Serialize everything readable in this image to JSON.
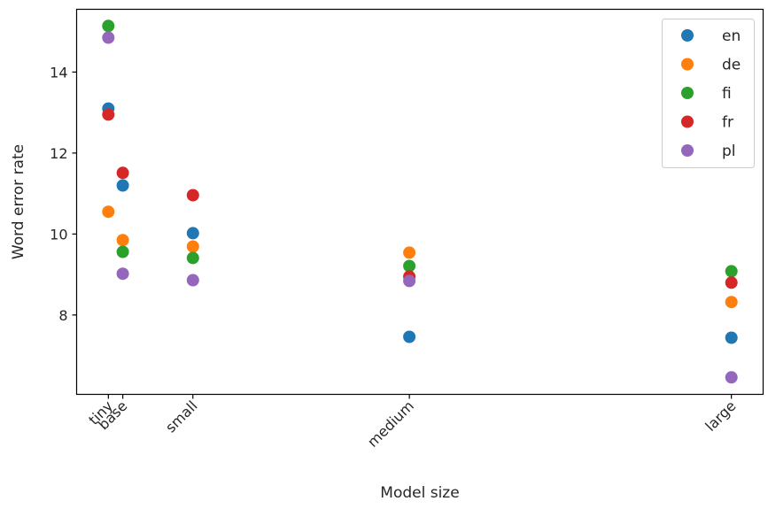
{
  "chart_data": {
    "type": "scatter",
    "title": "",
    "xlabel": "Model size",
    "ylabel": "Word error rate",
    "categories": [
      "tiny",
      "base",
      "small",
      "medium",
      "large"
    ],
    "x": [
      39,
      74,
      244,
      769,
      1550
    ],
    "xlim": [
      -38,
      1627
    ],
    "ylim": [
      6.04,
      15.55
    ],
    "yticks": [
      8,
      10,
      12,
      14
    ],
    "grid": false,
    "legend_position": "upper right",
    "series": [
      {
        "name": "en",
        "color": "#1f77b4",
        "values": [
          13.1,
          11.2,
          10.02,
          7.46,
          7.44
        ]
      },
      {
        "name": "de",
        "color": "#ff7f0e",
        "values": [
          10.55,
          9.85,
          9.69,
          9.54,
          8.32
        ]
      },
      {
        "name": "fi",
        "color": "#2ca02c",
        "values": [
          15.14,
          9.56,
          9.41,
          9.21,
          9.08
        ]
      },
      {
        "name": "fr",
        "color": "#d62728",
        "values": [
          12.95,
          11.51,
          10.96,
          8.95,
          8.8
        ]
      },
      {
        "name": "pl",
        "color": "#9467bd",
        "values": [
          14.85,
          9.02,
          8.86,
          8.84,
          6.46
        ]
      }
    ]
  }
}
